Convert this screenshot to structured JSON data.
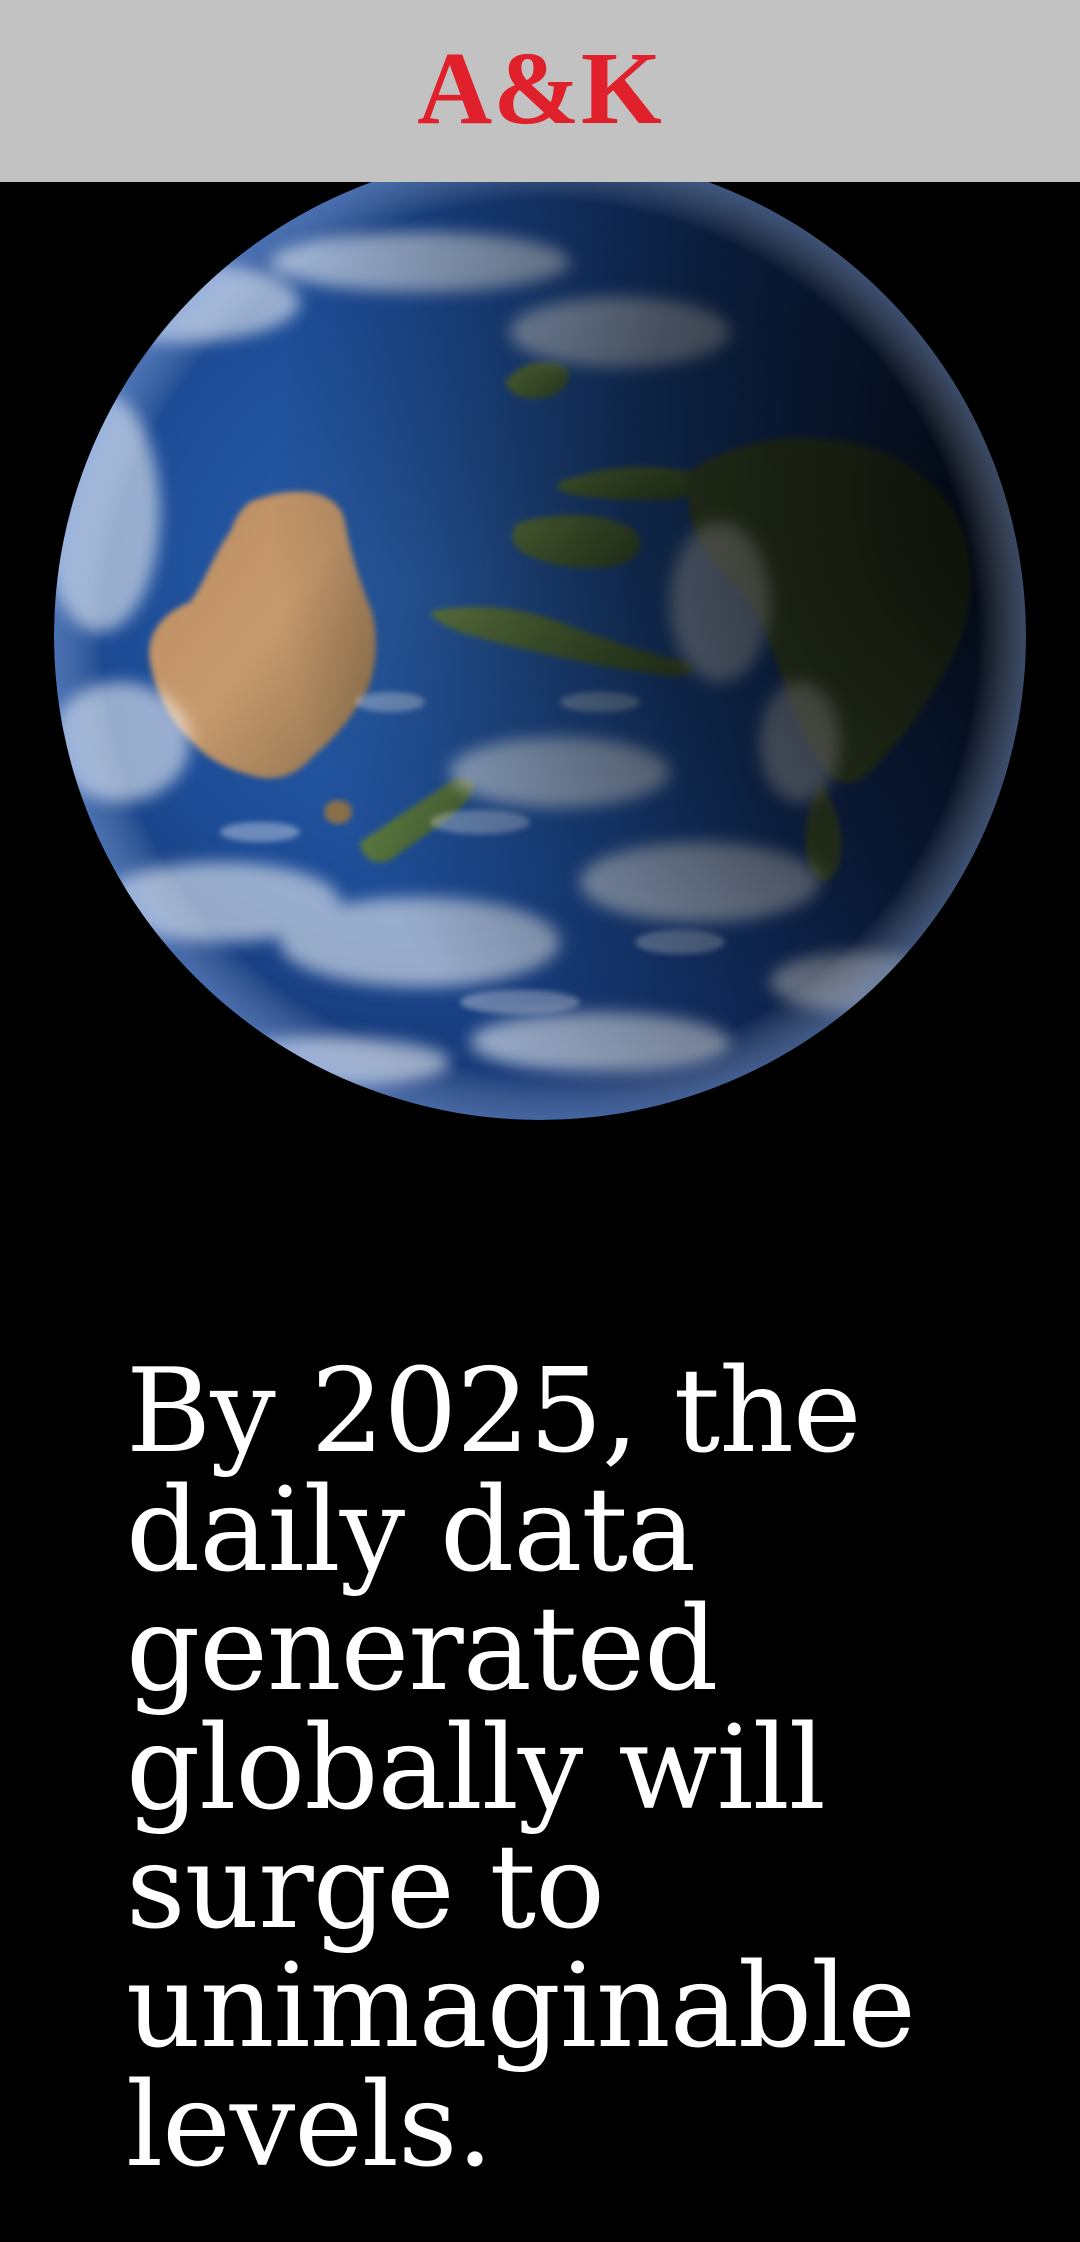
{
  "header": {
    "brand": "A&K",
    "brand_color": "#e0202a",
    "background_color": "#c2c2c2"
  },
  "hero": {
    "image_subject": "earth-globe"
  },
  "headline": {
    "text": "By 2025, the daily data generated globally will surge to unimaginable levels."
  }
}
